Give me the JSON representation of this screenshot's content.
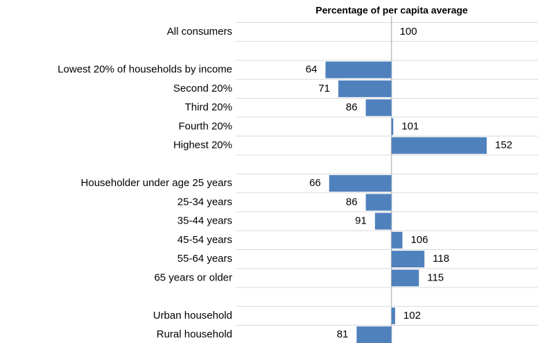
{
  "chart_data": {
    "type": "bar",
    "orientation": "horizontal",
    "title": "Percentage of per capita average",
    "categories": [
      "All consumers",
      null,
      "Lowest 20% of households by income",
      "Second 20%",
      "Third 20%",
      "Fourth 20%",
      "Highest 20%",
      null,
      "Householder under age 25 years",
      "25-34 years",
      "35-44 years",
      "45-54 years",
      "55-64 years",
      "65 years or older",
      null,
      "Urban household",
      "Rural household"
    ],
    "values": [
      100,
      null,
      64,
      71,
      86,
      101,
      152,
      null,
      66,
      86,
      91,
      106,
      118,
      115,
      null,
      102,
      81
    ],
    "baseline": 100,
    "xlim": [
      15,
      180
    ],
    "color": "#4f81bd",
    "grid": true
  }
}
